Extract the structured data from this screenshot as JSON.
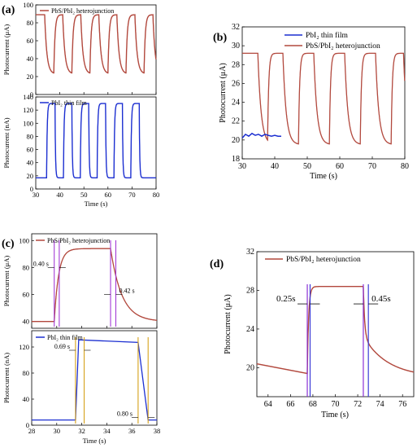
{
  "chart_data": [
    {
      "panel": "(a)",
      "type": "line",
      "xlabel": "Time (s)",
      "xlim": [
        30,
        80
      ],
      "xticks": [
        30,
        40,
        50,
        60,
        70,
        80
      ],
      "subplots": [
        {
          "ylabel": "Photocurrent (μA)",
          "ylim": [
            0,
            100
          ],
          "yticks": [
            0,
            20,
            40,
            60,
            80,
            100
          ],
          "legend": "PbS/PbI₂ heterojunction",
          "color": "#b2483d",
          "high": 89,
          "low": 23,
          "on_times": [
            30,
            37.5,
            45,
            52.5,
            60,
            67.5,
            75
          ],
          "off_times": [
            33.7,
            41.2,
            48.7,
            56.2,
            63.7,
            71.2,
            78.7
          ]
        },
        {
          "ylabel": "Photocurrent (nA)",
          "ylim": [
            0,
            140
          ],
          "yticks": [
            0,
            20,
            40,
            60,
            80,
            100,
            120,
            140
          ],
          "legend": "PbI₂ thin film",
          "color": "#1c2fd1",
          "high": 130,
          "low": 17,
          "on_times": [
            34.5,
            41.5,
            48.5,
            55.5,
            62.5,
            69.5
          ],
          "off_times": [
            38,
            45,
            52,
            59,
            66,
            73
          ]
        }
      ]
    },
    {
      "panel": "(b)",
      "type": "line",
      "xlabel": "Time (s)",
      "ylabel": "Photocurrent (μA)",
      "xlim": [
        30,
        80
      ],
      "ylim": [
        18,
        32
      ],
      "xticks": [
        30,
        40,
        50,
        60,
        70,
        80
      ],
      "yticks": [
        18,
        20,
        22,
        24,
        26,
        28,
        30,
        32
      ],
      "series": [
        {
          "name": "PbI₂ thin film",
          "color": "#1c2fd1",
          "x": [
            30,
            31,
            32,
            33,
            34,
            35,
            36,
            37,
            38,
            39,
            40,
            41,
            42
          ],
          "y": [
            20.2,
            20.6,
            20.4,
            20.7,
            20.5,
            20.6,
            20.4,
            20.6,
            20.5,
            20.4,
            20.5,
            20.4,
            20.4
          ]
        },
        {
          "name": "PbS/PbI₂ heterojunction",
          "color": "#b2483d",
          "high": 29.2,
          "low": 19.5,
          "on_times": [
            30,
            37.8,
            47.3,
            56.8,
            66.3,
            75.8
          ],
          "off_times": [
            34.8,
            42.5,
            52,
            61.5,
            71,
            79.6
          ]
        }
      ]
    },
    {
      "panel": "(c)",
      "type": "line",
      "xlabel": "Time (s)",
      "xlim": [
        28,
        38
      ],
      "xticks": [
        28,
        30,
        32,
        34,
        36,
        38
      ],
      "subplots": [
        {
          "ylabel": "Photocurrent (μA)",
          "ylim": [
            35,
            105
          ],
          "yticks": [
            40,
            60,
            80,
            100
          ],
          "legend": "PbS/PbI₂ heterojunction",
          "color": "#b2483d",
          "on_time": 29.8,
          "off_time": 34.3,
          "high": 94,
          "low": 40,
          "annotations": [
            {
              "text": "0.40 s",
              "x1": 29.8,
              "x2": 30.2
            },
            {
              "text": "0.42 s",
              "x1": 34.3,
              "x2": 34.72
            }
          ]
        },
        {
          "ylabel": "Photocurrent (nA)",
          "ylim": [
            0,
            145
          ],
          "yticks": [
            0,
            40,
            80,
            120
          ],
          "legend": "PbI₂ thin film",
          "color": "#1c2fd1",
          "on_time": 31.5,
          "off_time": 36.5,
          "high": 131,
          "low": 8,
          "annotations": [
            {
              "text": "0.69 s",
              "x1": 31.5,
              "x2": 32.19
            },
            {
              "text": "0.80 s",
              "x1": 36.5,
              "x2": 37.3
            }
          ]
        }
      ]
    },
    {
      "panel": "(d)",
      "type": "line",
      "xlabel": "Time (s)",
      "ylabel": "Photocurrent (μA)",
      "xlim": [
        63,
        77
      ],
      "ylim": [
        17,
        32
      ],
      "xticks": [
        64,
        66,
        68,
        70,
        72,
        74,
        76
      ],
      "yticks": [
        20,
        24,
        28,
        32
      ],
      "series": [
        {
          "name": "PbS/PbI₂ heterojunction",
          "color": "#b2483d",
          "on_time": 67.5,
          "off_time": 72.5,
          "high": 28.4,
          "base": 19.4
        }
      ],
      "annotations": [
        {
          "text": "0.25s",
          "x1": 67.5,
          "x2": 67.75
        },
        {
          "text": "0.45s",
          "x1": 72.5,
          "x2": 72.95
        }
      ]
    }
  ]
}
